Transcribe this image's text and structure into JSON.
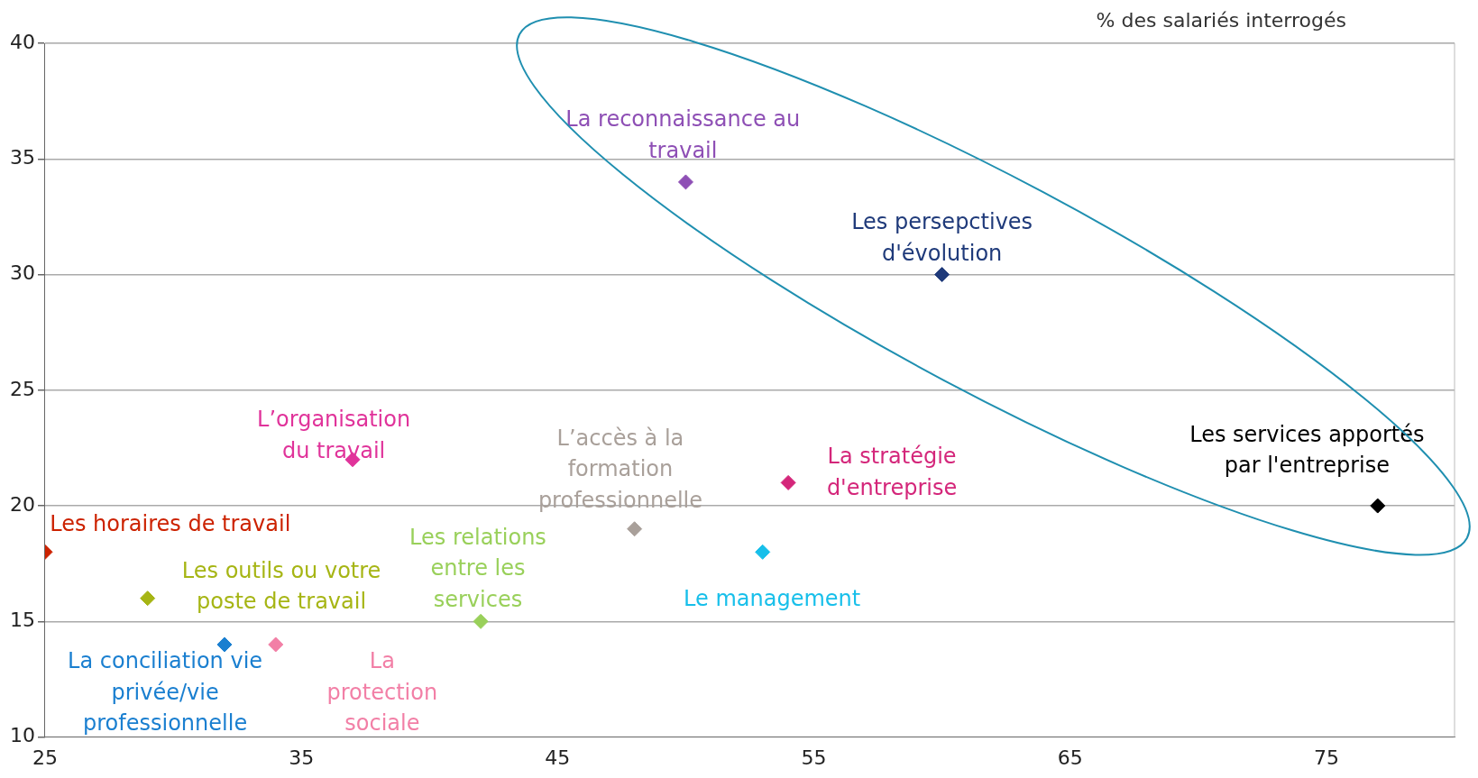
{
  "chart_data": {
    "type": "scatter",
    "annotations": [
      "% des salariés interrogés"
    ],
    "xlim": [
      25,
      80
    ],
    "xticks": [
      25,
      35,
      45,
      55,
      65,
      75
    ],
    "ylim": [
      10,
      40
    ],
    "yticks": [
      10,
      15,
      20,
      25,
      30,
      35,
      40
    ],
    "grid": "y",
    "legend": false,
    "marker": "diamond",
    "series": [
      {
        "name": "La reconnaissance au travail",
        "color": "#8e4fb5",
        "x": [
          50
        ],
        "values": [
          34
        ]
      },
      {
        "name": "Les persepctives d'évolution",
        "color": "#1f3a7a",
        "x": [
          60
        ],
        "values": [
          30
        ]
      },
      {
        "name": "Les services apportés par l'entreprise",
        "color": "#000000",
        "x": [
          77
        ],
        "values": [
          20
        ]
      },
      {
        "name": "L’organisation du travail",
        "color": "#e0339a",
        "x": [
          37
        ],
        "values": [
          22
        ]
      },
      {
        "name": "L’accès à la formation professionnelle",
        "color": "#a9a09a",
        "x": [
          48
        ],
        "values": [
          19
        ]
      },
      {
        "name": "La stratégie d'entreprise",
        "color": "#d4267a",
        "x": [
          54
        ],
        "values": [
          21
        ]
      },
      {
        "name": "Les horaires de travail",
        "color": "#cc2200",
        "x": [
          25
        ],
        "values": [
          18
        ]
      },
      {
        "name": "Les outils ou votre poste de travail",
        "color": "#a6b514",
        "x": [
          29
        ],
        "values": [
          16
        ]
      },
      {
        "name": "Les relations entre les services",
        "color": "#99d05a",
        "x": [
          42
        ],
        "values": [
          15
        ]
      },
      {
        "name": "Le management",
        "color": "#17bfea",
        "x": [
          53
        ],
        "values": [
          18
        ]
      },
      {
        "name": "La conciliation vie privée/vie professionnelle",
        "color": "#1a7fd0",
        "x": [
          32
        ],
        "values": [
          14
        ]
      },
      {
        "name": "La protection sociale",
        "color": "#f27fa6",
        "x": [
          34
        ],
        "values": [
          14
        ]
      }
    ]
  }
}
